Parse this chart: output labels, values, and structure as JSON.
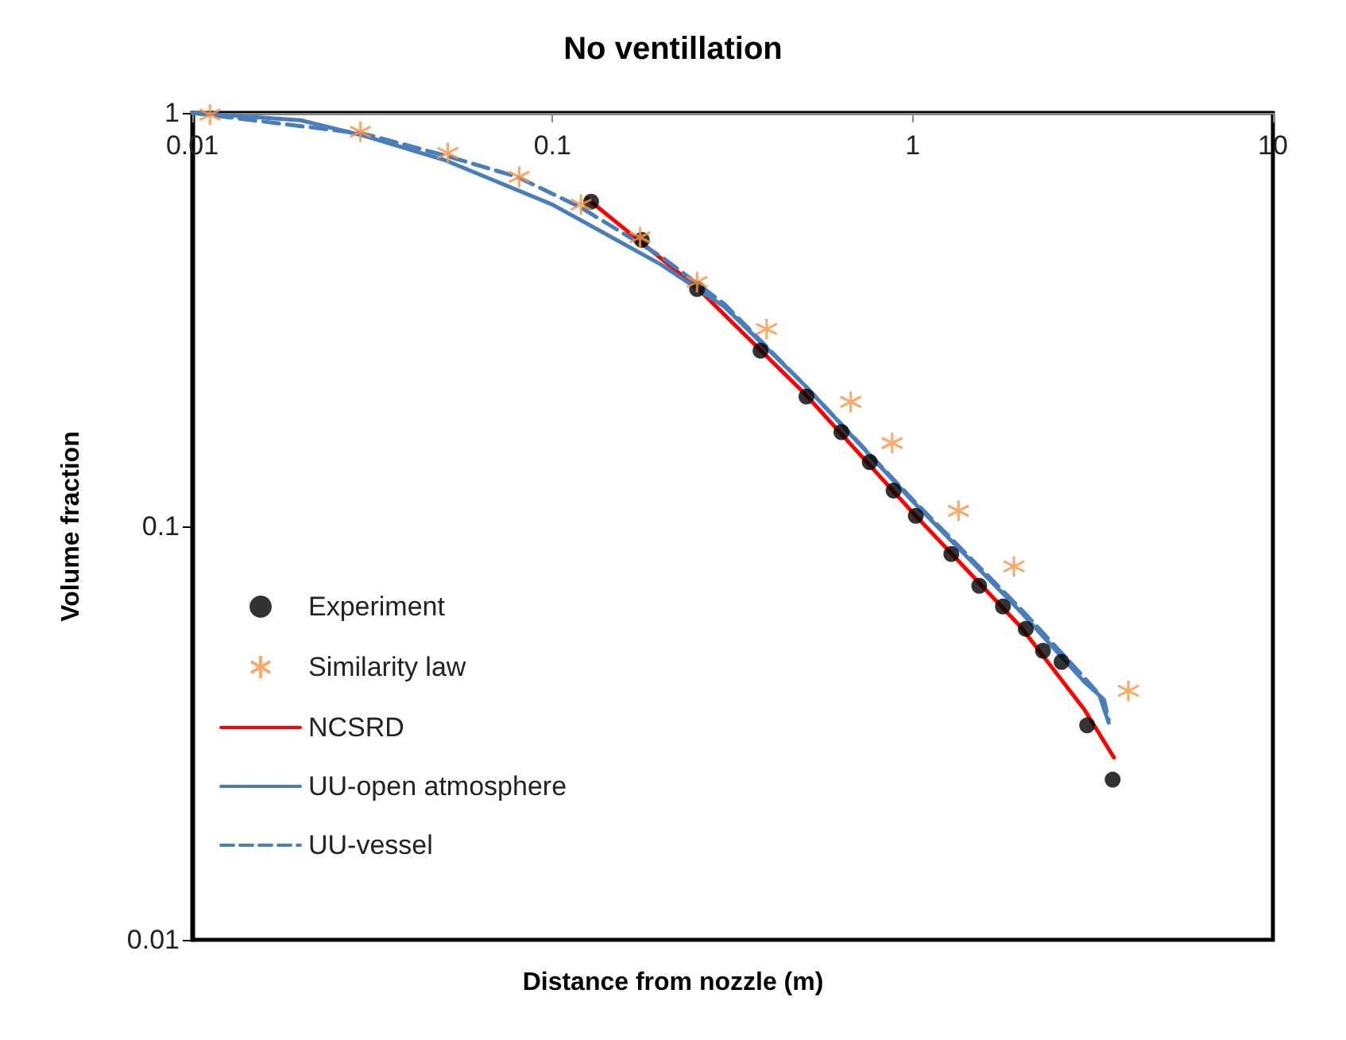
{
  "chart_data": {
    "type": "line",
    "title": "No ventillation",
    "xlabel": "Distance from nozzle (m)",
    "ylabel": "Volume fraction",
    "log": "xy",
    "xlim": [
      0.01,
      10
    ],
    "xticks": [
      0.01,
      0.1,
      1,
      10
    ],
    "ylim": [
      0.01,
      1
    ],
    "yticks": [
      0.01,
      0.1,
      1
    ],
    "grid": false,
    "legend": "bottom left",
    "series": [
      {
        "name": "Experiment",
        "type": "scatter",
        "marker": "circle",
        "color": "#000000",
        "x": [
          0.128,
          0.177,
          0.252,
          0.378,
          0.507,
          0.634,
          0.76,
          0.885,
          1.02,
          1.28,
          1.53,
          1.78,
          2.06,
          2.3,
          2.59,
          3.05,
          3.59
        ],
        "values": [
          0.61,
          0.493,
          0.375,
          0.266,
          0.206,
          0.169,
          0.143,
          0.122,
          0.106,
          0.0857,
          0.0718,
          0.064,
          0.0565,
          0.05,
          0.047,
          0.033,
          0.0244
        ]
      },
      {
        "name": "Similarity law",
        "type": "scatter",
        "marker": "cross",
        "color": "#f79646",
        "x": [
          0.0112,
          0.0293,
          0.0512,
          0.0808,
          0.12,
          0.175,
          0.252,
          0.393,
          0.673,
          0.877,
          1.34,
          1.91,
          3.97
        ],
        "values": [
          0.99,
          0.9,
          0.8,
          0.7,
          0.6,
          0.5,
          0.39,
          0.3,
          0.2,
          0.159,
          0.109,
          0.08,
          0.04
        ]
      },
      {
        "name": "NCSRD",
        "marker": "none",
        "line_style": "solid",
        "color": "#ff0000",
        "x": [
          0.125,
          0.25,
          0.5,
          1,
          2,
          3,
          3.62
        ],
        "values": [
          0.62,
          0.38,
          0.21,
          0.108,
          0.057,
          0.036,
          0.0276
        ]
      },
      {
        "name": "UU-open atmosphere",
        "marker": "none",
        "line_style": "solid",
        "color": "#4a7ebb",
        "x": [
          0.01,
          0.02,
          0.03,
          0.05,
          0.1,
          0.2,
          0.3,
          0.5,
          1,
          2,
          3,
          3.3,
          3.5
        ],
        "values": [
          1.0,
          0.96,
          0.88,
          0.77,
          0.6,
          0.43,
          0.34,
          0.22,
          0.115,
          0.062,
          0.042,
          0.039,
          0.0335
        ]
      },
      {
        "name": "UU-vessel",
        "marker": "none",
        "line_style": "dashed",
        "color": "#4a7ebb",
        "x": [
          0.01,
          0.03,
          0.05,
          0.08,
          0.12,
          0.2,
          0.3,
          0.5,
          1,
          2,
          3,
          3.4,
          3.5
        ],
        "values": [
          1.0,
          0.89,
          0.79,
          0.7,
          0.59,
          0.45,
          0.345,
          0.22,
          0.116,
          0.063,
          0.043,
          0.038,
          0.034
        ]
      }
    ]
  }
}
